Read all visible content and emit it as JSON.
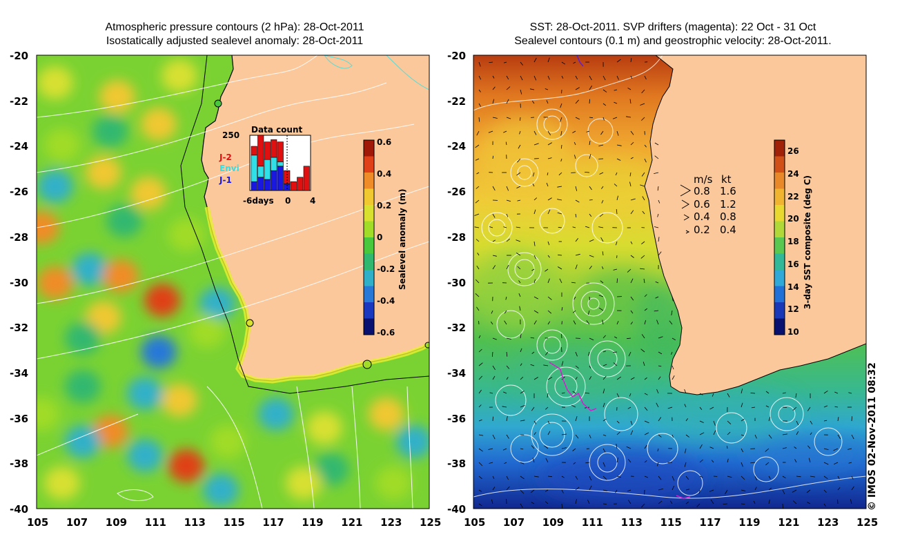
{
  "left_panel": {
    "title_line1": "Atmospheric pressure contours (2 hPa): 28-Oct-2011",
    "title_line2": "Isostatically adjusted sealevel anomaly: 28-Oct-2011",
    "colorbar": {
      "title": "Sealevel anomaly (m)",
      "ticks": [
        "0.6",
        "0.4",
        "0.2",
        "0",
        "-0.2",
        "-0.4",
        "-0.6"
      ],
      "colors": [
        "#a01808",
        "#e04018",
        "#f08c28",
        "#f0c830",
        "#d8e030",
        "#a0dc28",
        "#48c83c",
        "#30b870",
        "#30b0c8",
        "#2878d8",
        "#1838c0",
        "#081070"
      ]
    },
    "inset": {
      "title": "Data count",
      "ymax_label": "250",
      "x_labels": [
        "-6days",
        "0",
        "4"
      ],
      "series": [
        {
          "name": "J-2",
          "color": "#e01010"
        },
        {
          "name": "Envi",
          "color": "#30e0e8"
        },
        {
          "name": "J-1",
          "color": "#1818e0"
        }
      ],
      "bars": [
        {
          "j1": 40,
          "envi": 120,
          "j2": 40
        },
        {
          "j1": 60,
          "envi": 50,
          "j2": 140
        },
        {
          "j1": 50,
          "envi": 90,
          "j2": 80
        },
        {
          "j1": 90,
          "envi": 60,
          "j2": 80
        },
        {
          "j1": 110,
          "envi": 20,
          "j2": 90
        },
        {
          "j1": 30,
          "envi": 0,
          "j2": 60
        },
        {
          "j1": 0,
          "envi": 0,
          "j2": 40
        },
        {
          "j1": 0,
          "envi": 0,
          "j2": 60
        },
        {
          "j1": 0,
          "envi": 0,
          "j2": 110
        }
      ]
    }
  },
  "right_panel": {
    "title_line1": "SST: 28-Oct-2011. SVP drifters (magenta): 22 Oct - 31 Oct",
    "title_line2": "Sealevel contours (0.1 m) and geostrophic velocity: 28-Oct-2011.",
    "colorbar": {
      "title": "3-day SST composite (deg C)",
      "ticks": [
        "26",
        "24",
        "22",
        "20",
        "18",
        "16",
        "14",
        "12",
        "10"
      ],
      "colors": [
        "#a02008",
        "#d05018",
        "#e88828",
        "#f0b430",
        "#e8d830",
        "#b0d838",
        "#58c850",
        "#30b898",
        "#30a8d8",
        "#2070d8",
        "#1838b8",
        "#081070"
      ]
    },
    "velocity_legend": {
      "header_ms": "m/s",
      "header_kt": "kt",
      "rows": [
        {
          "ms": "0.8",
          "kt": "1.6"
        },
        {
          "ms": "0.6",
          "kt": "1.2"
        },
        {
          "ms": "0.4",
          "kt": "0.8"
        },
        {
          "ms": "0.2",
          "kt": "0.4"
        }
      ]
    },
    "copyright": "© IMOS 02-Nov-2011 08:32"
  },
  "axes": {
    "lat_labels": [
      "-20",
      "-22",
      "-24",
      "-26",
      "-28",
      "-30",
      "-32",
      "-34",
      "-36",
      "-38",
      "-40"
    ],
    "lon_labels": [
      "105",
      "107",
      "109",
      "111",
      "113",
      "115",
      "117",
      "119",
      "121",
      "123",
      "125"
    ]
  },
  "colors": {
    "land": "#fbc89c",
    "coast": "#000000",
    "contour": "#ffffff",
    "drifter": "#d020d0"
  }
}
